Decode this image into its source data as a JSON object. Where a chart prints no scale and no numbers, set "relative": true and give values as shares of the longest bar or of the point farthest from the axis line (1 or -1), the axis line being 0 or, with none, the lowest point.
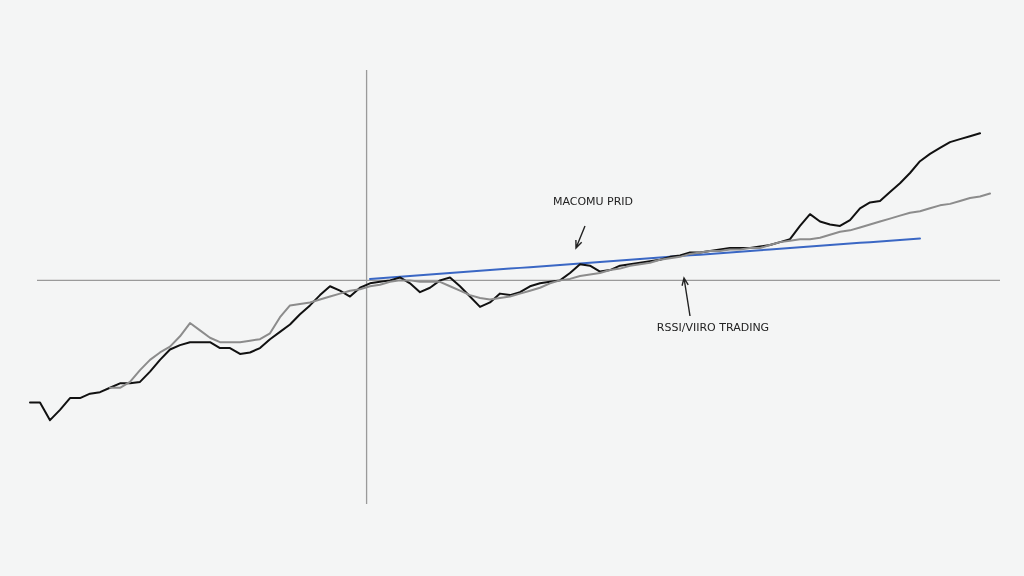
{
  "chart_data": {
    "type": "line",
    "relative": true,
    "categories": [
      null,
      null,
      null,
      null,
      null,
      null,
      null,
      null,
      null,
      null,
      null,
      null,
      null,
      null,
      null,
      null,
      null,
      null,
      null,
      null,
      null,
      null,
      null,
      null,
      null,
      null,
      null,
      null,
      null,
      null,
      null,
      null,
      null,
      null,
      null,
      null,
      null,
      null,
      null,
      null,
      null,
      null,
      null,
      null,
      null,
      null,
      null,
      null,
      null,
      null,
      null,
      null,
      null,
      null,
      null,
      null,
      null,
      null,
      null,
      null,
      null,
      null,
      null,
      null,
      null,
      null,
      null,
      null,
      null,
      null,
      null,
      null,
      null,
      null,
      null,
      null,
      null,
      null,
      null,
      null,
      null,
      null,
      null,
      null,
      null,
      null,
      null,
      null,
      null,
      null,
      null,
      null,
      null,
      null,
      null,
      null,
      null,
      null
    ],
    "series": [
      {
        "color": "#8c8c8c",
        "values": [
          null,
          null,
          null,
          null,
          null,
          null,
          null,
          null,
          -0.73,
          -0.73,
          -0.69,
          -0.61,
          -0.54,
          -0.49,
          -0.45,
          -0.38,
          -0.29,
          -0.34,
          -0.39,
          -0.42,
          -0.42,
          -0.42,
          -0.41,
          -0.4,
          -0.36,
          -0.25,
          -0.17,
          -0.16,
          -0.15,
          -0.13,
          -0.11,
          -0.09,
          -0.07,
          -0.06,
          -0.04,
          -0.03,
          -0.01,
          0,
          0,
          -0.01,
          -0.01,
          -0.01,
          -0.04,
          -0.07,
          -0.1,
          -0.12,
          -0.13,
          -0.12,
          -0.11,
          -0.09,
          -0.07,
          -0.05,
          -0.02,
          0,
          0.01,
          0.03,
          0.04,
          0.05,
          0.07,
          0.08,
          0.1,
          0.11,
          0.12,
          0.14,
          0.15,
          0.16,
          0.18,
          0.19,
          0.2,
          0.2,
          0.21,
          0.21,
          0.22,
          0.22,
          0.24,
          0.26,
          0.27,
          0.28,
          0.28,
          0.29,
          0.31,
          0.33,
          0.34,
          0.36,
          0.38,
          0.4,
          0.42,
          0.44,
          0.46,
          0.47,
          0.49,
          0.51,
          0.52,
          0.54,
          0.56,
          0.57,
          0.59,
          null
        ]
      },
      {
        "color": "#111111",
        "values": [
          -0.83,
          -0.83,
          -0.95,
          -0.88,
          -0.8,
          -0.8,
          -0.77,
          -0.76,
          -0.73,
          -0.7,
          -0.7,
          -0.69,
          -0.62,
          -0.54,
          -0.47,
          -0.44,
          -0.42,
          -0.42,
          -0.42,
          -0.46,
          -0.46,
          -0.5,
          -0.49,
          -0.46,
          -0.4,
          -0.35,
          -0.3,
          -0.23,
          -0.17,
          -0.1,
          -0.04,
          -0.07,
          -0.11,
          -0.05,
          -0.02,
          -0.01,
          0,
          0.02,
          -0.02,
          -0.08,
          -0.05,
          0,
          0.02,
          -0.04,
          -0.11,
          -0.18,
          -0.15,
          -0.09,
          -0.1,
          -0.08,
          -0.04,
          -0.02,
          -0.01,
          0,
          0.05,
          0.11,
          0.1,
          0.06,
          0.07,
          0.1,
          0.11,
          0.12,
          0.13,
          0.14,
          0.16,
          0.17,
          0.19,
          0.19,
          0.2,
          0.21,
          0.22,
          0.22,
          0.22,
          0.23,
          0.24,
          0.26,
          0.28,
          0.37,
          0.45,
          0.4,
          0.38,
          0.37,
          0.41,
          0.49,
          0.53,
          0.54,
          0.6,
          0.66,
          0.73,
          0.81,
          0.86,
          0.9,
          0.94,
          0.96,
          0.98,
          1,
          null,
          null
        ]
      },
      {
        "color": "#3a67c4",
        "values": [
          null,
          null,
          null,
          null,
          null,
          null,
          null,
          null,
          null,
          null,
          null,
          null,
          null,
          null,
          null,
          null,
          null,
          null,
          null,
          null,
          null,
          null,
          null,
          null,
          null,
          null,
          null,
          null,
          null,
          null,
          null,
          null,
          null,
          null,
          0.01,
          0.015,
          0.02,
          0.025,
          0.03,
          0.035,
          0.04,
          0.045,
          0.05,
          0.055,
          0.06,
          0.065,
          0.07,
          0.075,
          0.08,
          0.085,
          0.09,
          0.095,
          0.1,
          0.105,
          0.11,
          0.115,
          0.12,
          0.125,
          0.13,
          0.135,
          0.14,
          0.145,
          0.15,
          0.155,
          0.16,
          0.165,
          0.17,
          0.175,
          0.18,
          0.185,
          0.19,
          0.195,
          0.2,
          0.205,
          0.21,
          0.215,
          0.22,
          0.225,
          0.23,
          0.235,
          0.24,
          0.245,
          0.25,
          0.255,
          0.26,
          0.265,
          0.27,
          0.275,
          0.28,
          0.285,
          null,
          null,
          null,
          null,
          null,
          null,
          null,
          null
        ]
      }
    ],
    "annotations": [
      "MACOMU PRID",
      "RSSI/VIIRO TRADING"
    ]
  }
}
